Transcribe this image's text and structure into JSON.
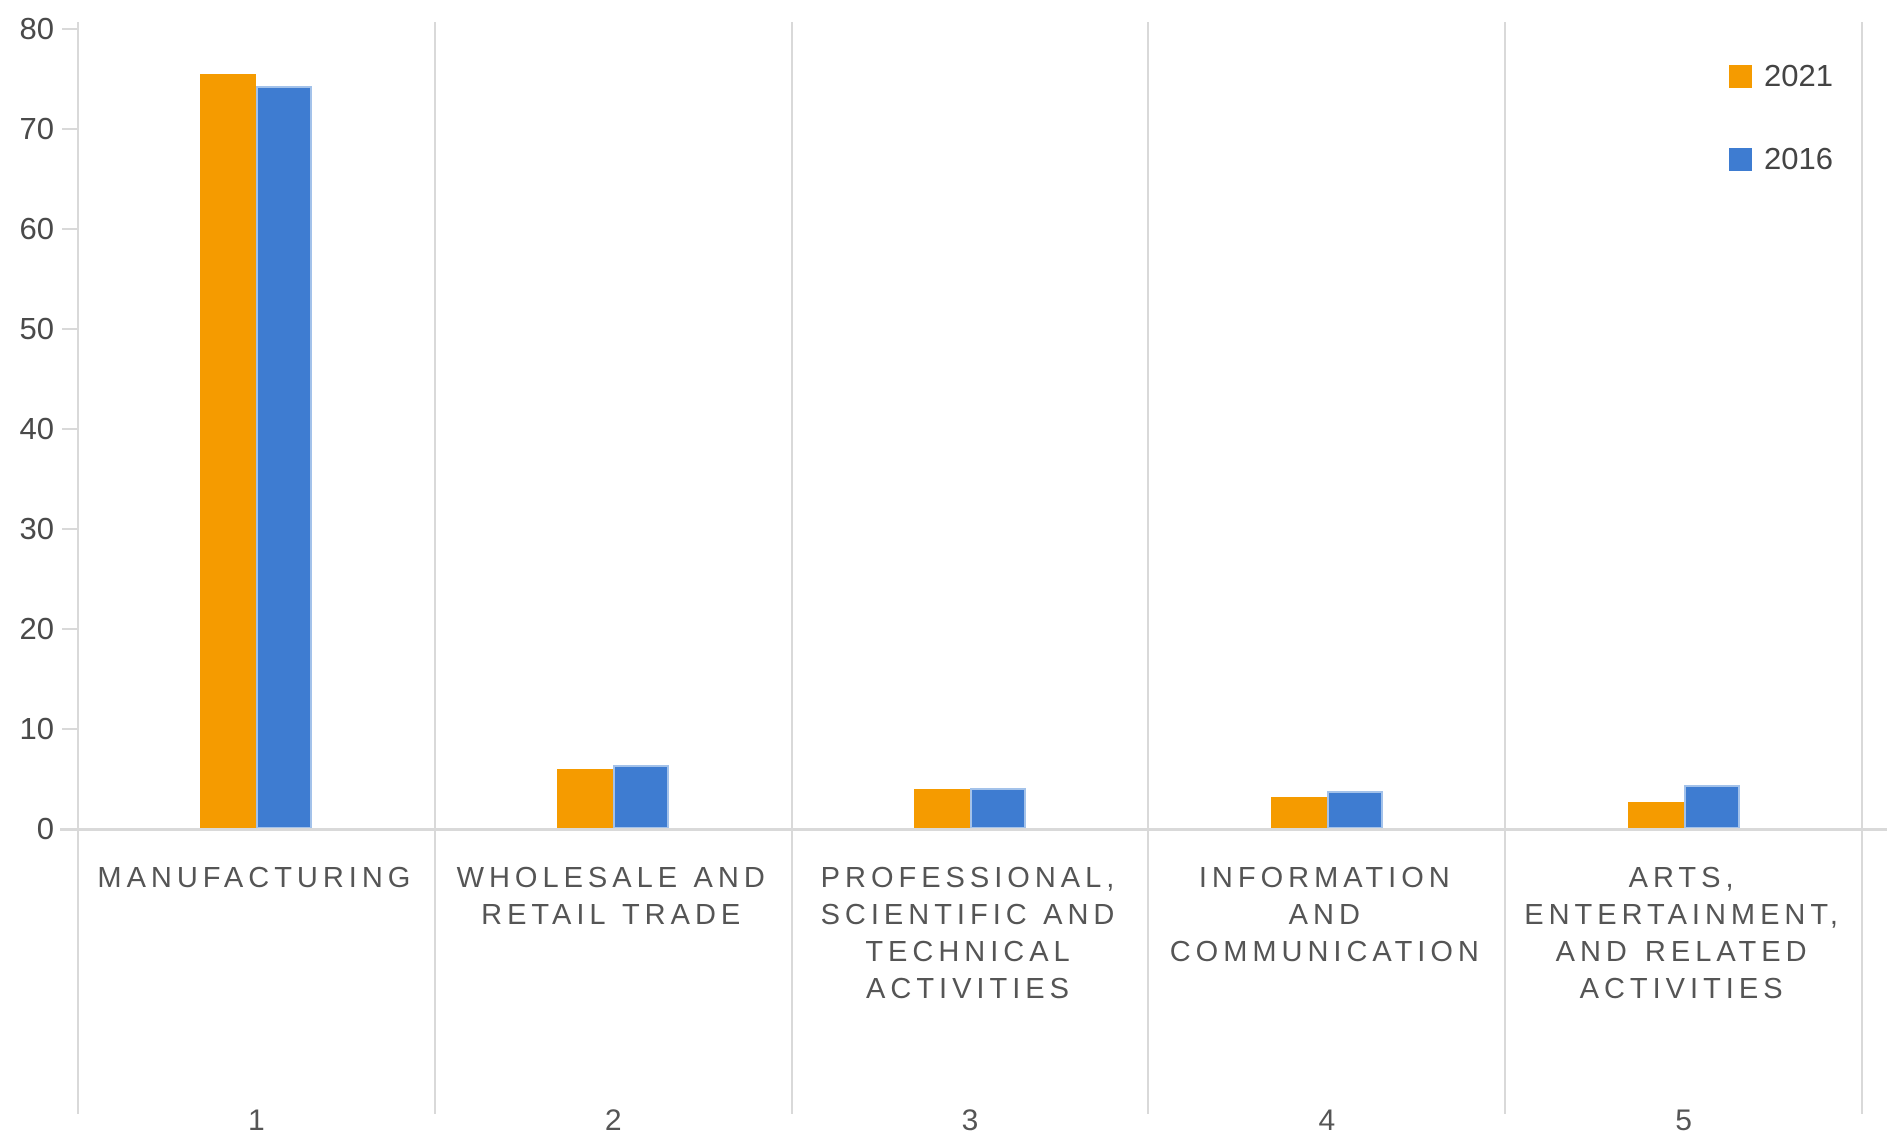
{
  "chart_data": {
    "type": "bar",
    "title": "",
    "xlabel": "",
    "ylabel": "",
    "ylim": [
      0,
      80
    ],
    "yticks": [
      80,
      70,
      60,
      50,
      40,
      30,
      20,
      10,
      0
    ],
    "grid": "vertical-panel-dividers-only",
    "legend_position": "top-right",
    "axis_line_color": "#d9d9d9",
    "text_color": "#555555",
    "categories": [
      "MANUFACTURING",
      "WHOLESALE AND RETAIL TRADE",
      "PROFESSIONAL, SCIENTIFIC AND TECHNICAL ACTIVITIES",
      "INFORMATION AND COMMUNICATION",
      "ARTS, ENTERTAINMENT, AND RELATED ACTIVITIES"
    ],
    "category_numbers": [
      "1",
      "2",
      "3",
      "4",
      "5"
    ],
    "series": [
      {
        "name": "2021",
        "color": "#F59B00",
        "values": [
          75.5,
          6.0,
          4.0,
          3.2,
          2.7
        ]
      },
      {
        "name": "2016",
        "color": "#3E7CD1",
        "border_color": "#A3C2EA",
        "values": [
          74.3,
          6.4,
          4.1,
          3.8,
          4.4
        ]
      }
    ]
  },
  "y_axis": {
    "ticks": [
      "80",
      "70",
      "60",
      "50",
      "40",
      "30",
      "20",
      "10",
      "0"
    ]
  },
  "categories": [
    {
      "lines": [
        "MANUFACTURING"
      ],
      "number": "1"
    },
    {
      "lines": [
        "WHOLESALE AND",
        "RETAIL TRADE"
      ],
      "number": "2"
    },
    {
      "lines": [
        "PROFESSIONAL,",
        "SCIENTIFIC AND",
        "TECHNICAL",
        "ACTIVITIES"
      ],
      "number": "3"
    },
    {
      "lines": [
        "INFORMATION",
        "AND",
        "COMMUNICATION"
      ],
      "number": "4"
    },
    {
      "lines": [
        "ARTS,",
        "ENTERTAINMENT,",
        "AND RELATED",
        "ACTIVITIES"
      ],
      "number": "5"
    }
  ],
  "legend": [
    {
      "label": "2021",
      "color": "#F59B00"
    },
    {
      "label": "2016",
      "color": "#3E7CD1"
    }
  ]
}
